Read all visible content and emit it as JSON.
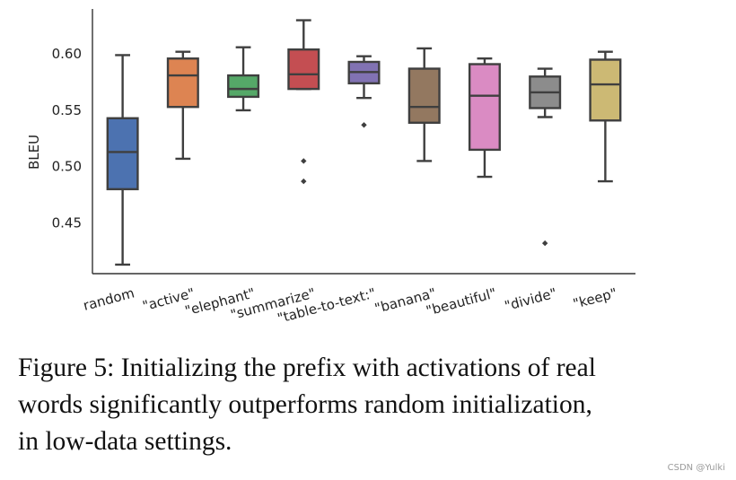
{
  "chart_data": {
    "type": "box",
    "ylabel": "BLEU",
    "xlabel": "",
    "ylim": [
      0.405,
      0.64
    ],
    "yticks": [
      "0.45",
      "0.50",
      "0.55",
      "0.60"
    ],
    "grid": false,
    "categories": [
      "random",
      "\"active\"",
      "\"elephant\"",
      "\"summarize\"",
      "\"table-to-text:\"",
      "\"banana\"",
      "\"beautiful\"",
      "\"divide\"",
      "\"keep\""
    ],
    "colors": [
      "#4c72b0",
      "#dd8452",
      "#55a868",
      "#c44e52",
      "#8172b3",
      "#937860",
      "#da8bc3",
      "#8c8c8c",
      "#ccb974"
    ],
    "boxes": [
      {
        "whisker_low": 0.413,
        "q1": 0.48,
        "median": 0.513,
        "q3": 0.543,
        "whisker_high": 0.599,
        "outliers": []
      },
      {
        "whisker_low": 0.507,
        "q1": 0.553,
        "median": 0.581,
        "q3": 0.596,
        "whisker_high": 0.602,
        "outliers": []
      },
      {
        "whisker_low": 0.55,
        "q1": 0.562,
        "median": 0.569,
        "q3": 0.581,
        "whisker_high": 0.606,
        "outliers": []
      },
      {
        "whisker_low": 0.569,
        "q1": 0.569,
        "median": 0.582,
        "q3": 0.604,
        "whisker_high": 0.63,
        "outliers": [
          0.505,
          0.487
        ]
      },
      {
        "whisker_low": 0.561,
        "q1": 0.574,
        "median": 0.584,
        "q3": 0.593,
        "whisker_high": 0.598,
        "outliers": [
          0.537
        ]
      },
      {
        "whisker_low": 0.505,
        "q1": 0.539,
        "median": 0.553,
        "q3": 0.587,
        "whisker_high": 0.605,
        "outliers": []
      },
      {
        "whisker_low": 0.491,
        "q1": 0.515,
        "median": 0.563,
        "q3": 0.591,
        "whisker_high": 0.596,
        "outliers": []
      },
      {
        "whisker_low": 0.544,
        "q1": 0.552,
        "median": 0.566,
        "q3": 0.58,
        "whisker_high": 0.587,
        "outliers": [
          0.432
        ]
      },
      {
        "whisker_low": 0.487,
        "q1": 0.541,
        "median": 0.573,
        "q3": 0.595,
        "whisker_high": 0.602,
        "outliers": []
      }
    ]
  },
  "caption": {
    "line1": "Figure 5:  Initializing the prefix with activations of real",
    "line2": "words significantly outperforms random initialization,",
    "line3": "in low-data settings."
  },
  "watermark": "CSDN @Yulki"
}
